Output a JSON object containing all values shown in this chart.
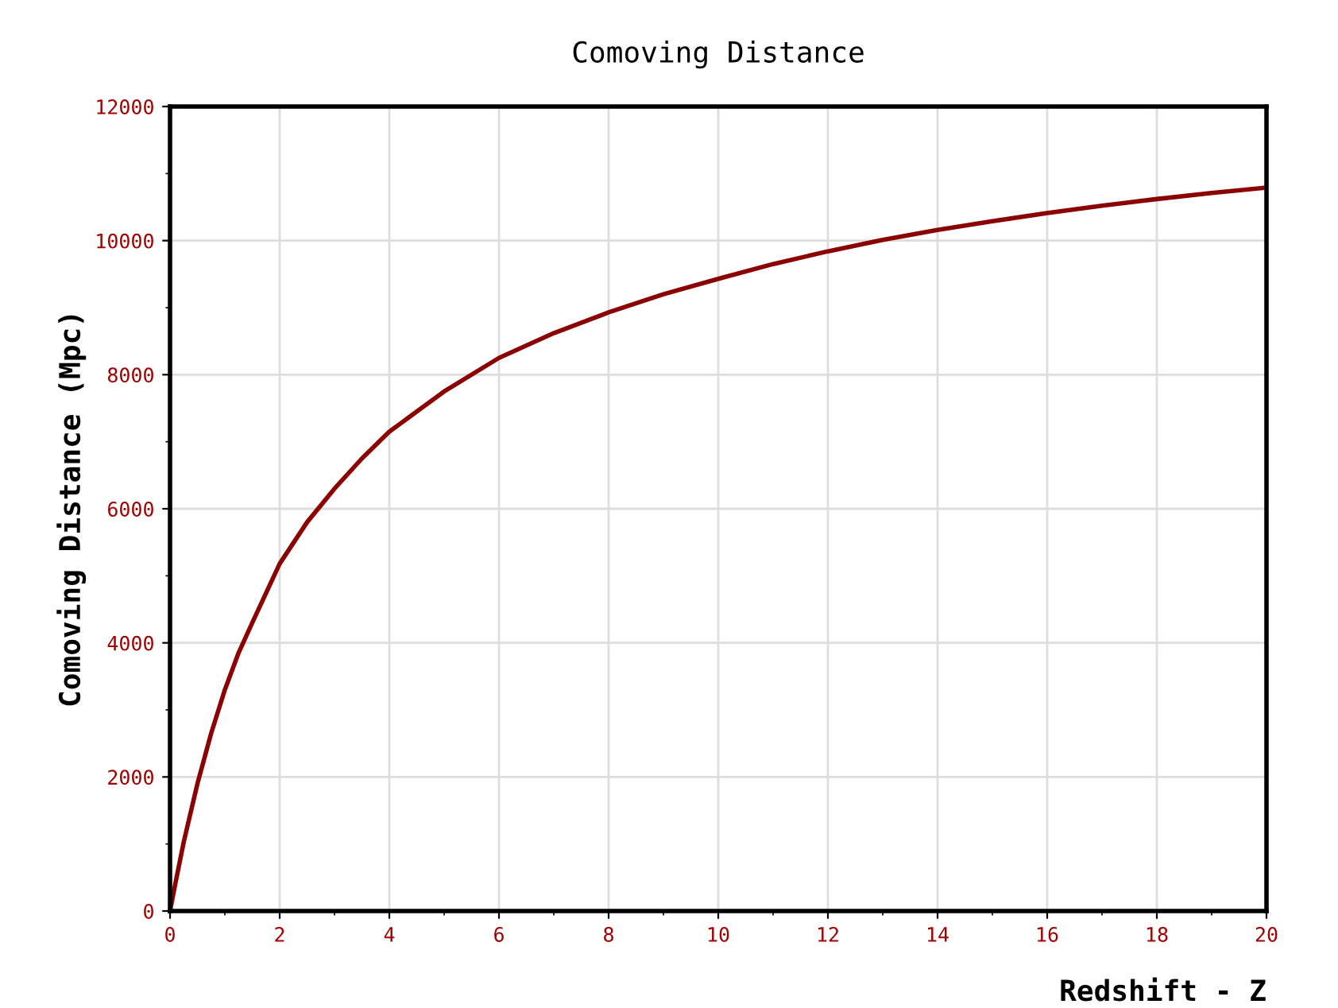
{
  "chart_data": {
    "type": "line",
    "title": "Comoving Distance",
    "xlabel": "Redshift - Z",
    "ylabel": "Comoving Distance (Mpc)",
    "series": [
      {
        "color": "#8b0000",
        "x": [
          0,
          0.1,
          0.25,
          0.5,
          0.75,
          1,
          1.25,
          1.5,
          2,
          2.5,
          3,
          3.5,
          4,
          4.5,
          5,
          6,
          7,
          8,
          9,
          10,
          11,
          12,
          13,
          14,
          15,
          16,
          17,
          18,
          19,
          20
        ],
        "values": [
          0,
          420,
          1030,
          1900,
          2650,
          3300,
          3850,
          4300,
          5180,
          5800,
          6300,
          6750,
          7150,
          7450,
          7750,
          8250,
          8620,
          8930,
          9200,
          9430,
          9650,
          9840,
          10010,
          10160,
          10290,
          10410,
          10520,
          10620,
          10710,
          10790
        ]
      }
    ],
    "xlim": [
      0,
      20
    ],
    "xticks": [
      0,
      2,
      4,
      6,
      8,
      10,
      12,
      14,
      16,
      18,
      20
    ],
    "ylim": [
      0,
      12000
    ],
    "yticks": [
      0,
      2000,
      4000,
      6000,
      8000,
      10000,
      12000
    ],
    "grid": true,
    "marker": "none",
    "line_style": "solid"
  }
}
